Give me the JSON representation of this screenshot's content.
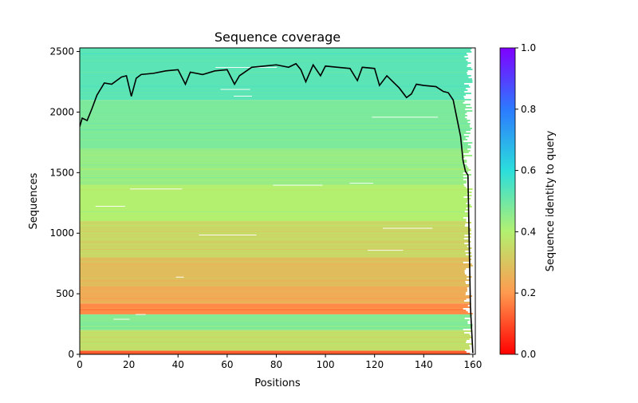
{
  "chart_data": {
    "type": "heatmap",
    "title": "Sequence coverage",
    "xlabel": "Positions",
    "ylabel": "Sequences",
    "xlim": [
      0,
      161
    ],
    "ylim": [
      0,
      2530
    ],
    "xticks": [
      0,
      20,
      40,
      60,
      80,
      100,
      120,
      140,
      160
    ],
    "yticks": [
      0,
      500,
      1000,
      1500,
      2000,
      2500
    ],
    "grid": false,
    "colorbar": {
      "label": "Sequence identity to query",
      "range": [
        0,
        1
      ],
      "ticks": [
        "0.0",
        "0.2",
        "0.4",
        "0.6",
        "0.8",
        "1.0"
      ],
      "colormap": "rainbow"
    },
    "identity_bands": [
      {
        "from": 0,
        "to": 30,
        "identity": 0.12
      },
      {
        "from": 30,
        "to": 200,
        "identity": 0.36
      },
      {
        "from": 200,
        "to": 330,
        "identity": 0.47
      },
      {
        "from": 330,
        "to": 420,
        "identity": 0.18
      },
      {
        "from": 420,
        "to": 560,
        "identity": 0.24
      },
      {
        "from": 560,
        "to": 800,
        "identity": 0.28
      },
      {
        "from": 800,
        "to": 1100,
        "identity": 0.34
      },
      {
        "from": 1100,
        "to": 1400,
        "identity": 0.4
      },
      {
        "from": 1400,
        "to": 1700,
        "identity": 0.44
      },
      {
        "from": 1700,
        "to": 2100,
        "identity": 0.48
      },
      {
        "from": 2100,
        "to": 2530,
        "identity": 0.53
      }
    ],
    "coverage": {
      "name": "",
      "x": [
        0,
        1,
        3,
        5,
        7,
        10,
        13,
        15,
        17,
        19,
        21,
        23,
        25,
        30,
        35,
        40,
        43,
        45,
        50,
        55,
        60,
        63,
        65,
        70,
        75,
        80,
        85,
        88,
        90,
        92,
        95,
        98,
        100,
        105,
        110,
        113,
        115,
        120,
        122,
        125,
        128,
        130,
        133,
        135,
        137,
        140,
        145,
        148,
        150,
        152,
        153,
        155,
        156,
        157,
        158,
        159,
        160
      ],
      "y": [
        1880,
        1950,
        1930,
        2030,
        2140,
        2240,
        2230,
        2260,
        2290,
        2300,
        2130,
        2280,
        2310,
        2320,
        2340,
        2350,
        2230,
        2330,
        2310,
        2340,
        2350,
        2230,
        2300,
        2370,
        2380,
        2390,
        2370,
        2400,
        2350,
        2250,
        2390,
        2300,
        2380,
        2370,
        2360,
        2260,
        2370,
        2360,
        2220,
        2300,
        2240,
        2200,
        2120,
        2150,
        2230,
        2220,
        2210,
        2170,
        2160,
        2100,
        2000,
        1800,
        1600,
        1510,
        1480,
        400,
        10
      ]
    }
  }
}
